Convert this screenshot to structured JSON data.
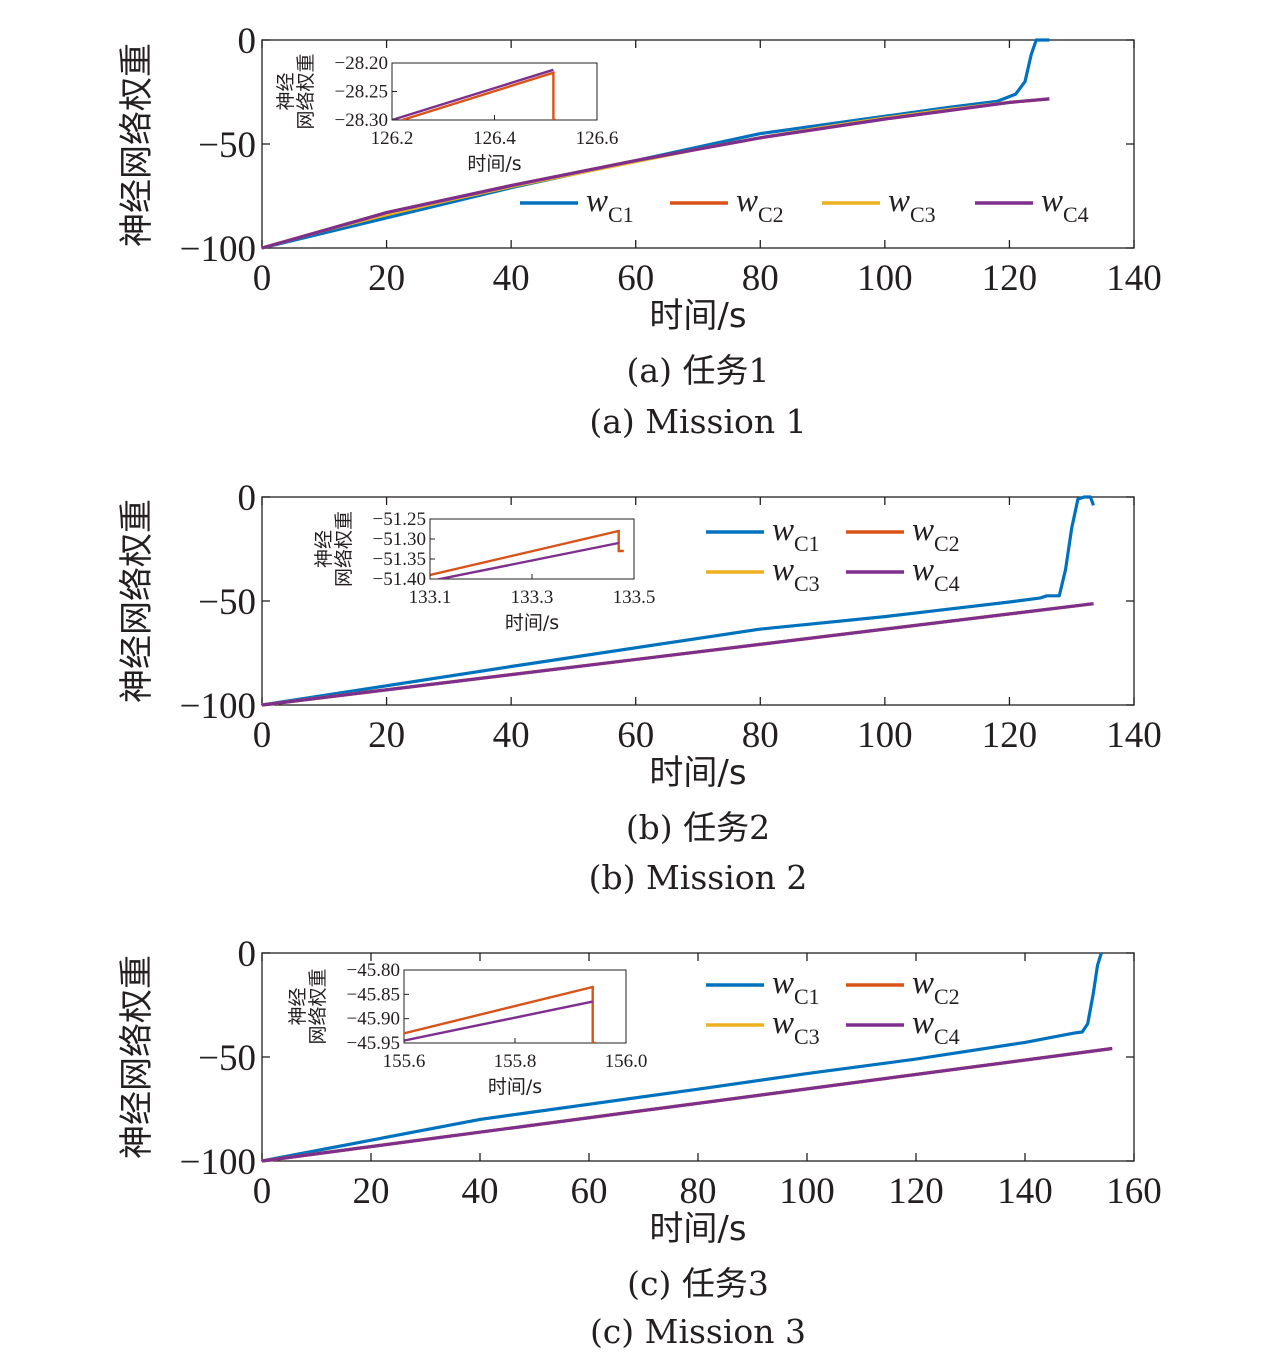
{
  "colors": {
    "wC1": "#0072bd",
    "wC2": "#d95319",
    "wC3": "#edb120",
    "wC4": "#7e2f8e",
    "axis": "#231f20"
  },
  "chart_data": [
    {
      "type": "line",
      "xlabel": "时间/s",
      "ylabel": "神经网络权重",
      "xlim": [
        0,
        140
      ],
      "ylim": [
        -100,
        0
      ],
      "xticks": [
        "0",
        "20",
        "40",
        "60",
        "80",
        "100",
        "120",
        "140"
      ],
      "yticks": [
        "0",
        "−50",
        "−100"
      ],
      "caption_cn": "(a) 任务1",
      "caption_en": "(a) Mission 1",
      "legend": {
        "placement": "lower-right",
        "layout": "1-row"
      },
      "series": [
        {
          "name": "wC1",
          "label_main": "w",
          "label_sub": "C1",
          "color": "#0072bd",
          "x": [
            0,
            40,
            80,
            110,
            118,
            121,
            122.5,
            123.5,
            124.3,
            126.4
          ],
          "y": [
            -100,
            -71,
            -45,
            -32.5,
            -29.5,
            -26,
            -20,
            -7,
            0,
            0
          ]
        },
        {
          "name": "wC2",
          "label_main": "w",
          "label_sub": "C2",
          "color": "#d95319",
          "x": [
            0,
            20,
            40,
            60,
            80,
            100,
            120,
            126.4
          ],
          "y": [
            -100,
            -83,
            -70,
            -58,
            -47,
            -38,
            -30,
            -28.3
          ]
        },
        {
          "name": "wC3",
          "label_main": "w",
          "label_sub": "C3",
          "color": "#edb120",
          "x": [
            0,
            10,
            20,
            30,
            40,
            50,
            60,
            70,
            80,
            90,
            100,
            110,
            120,
            126.4
          ],
          "y": [
            -100,
            -91.5,
            -84,
            -77,
            -70.5,
            -64.5,
            -58.5,
            -52.5,
            -47,
            -42,
            -37.5,
            -33.5,
            -30,
            -28.3
          ]
        },
        {
          "name": "wC4",
          "label_main": "w",
          "label_sub": "C4",
          "color": "#7e2f8e",
          "x": [
            0,
            20,
            40,
            60,
            80,
            100,
            120,
            126.4
          ],
          "y": [
            -100,
            -83,
            -70,
            -58,
            -47,
            -38,
            -30,
            -28.3
          ]
        }
      ],
      "inset": {
        "xlabel": "时间/s",
        "ylabel_line1": "神经",
        "ylabel_line2": "网络权重",
        "xlim": [
          126.2,
          126.6
        ],
        "ylim": [
          -28.3,
          -28.2
        ],
        "xticks": [
          "126.2",
          "126.4",
          "126.6"
        ],
        "yticks": [
          "−28.20",
          "−28.25",
          "−28.30"
        ],
        "series": [
          {
            "name": "wC2",
            "x": [
              126.22,
              126.515,
              126.515,
              126.52
            ],
            "y": [
              -28.3,
              -28.217,
              -28.3,
              -28.3
            ]
          },
          {
            "name": "wC4",
            "x": [
              126.2,
              126.515
            ],
            "y": [
              -28.3,
              -28.212
            ]
          }
        ]
      }
    },
    {
      "type": "line",
      "xlabel": "时间/s",
      "ylabel": "神经网络权重",
      "xlim": [
        0,
        140
      ],
      "ylim": [
        -100,
        0
      ],
      "xticks": [
        "0",
        "20",
        "40",
        "60",
        "80",
        "100",
        "120",
        "140"
      ],
      "yticks": [
        "0",
        "−50",
        "−100"
      ],
      "caption_cn": "(b) 任务2",
      "caption_en": "(b) Mission 2",
      "legend": {
        "placement": "top-right",
        "layout": "2-column"
      },
      "series": [
        {
          "name": "wC1",
          "label_main": "w",
          "label_sub": "C1",
          "color": "#0072bd",
          "x": [
            0,
            40,
            80,
            100,
            110,
            120,
            125,
            126,
            128,
            129,
            130,
            131,
            132,
            133,
            133.5
          ],
          "y": [
            -100,
            -81.5,
            -63.5,
            -57.5,
            -54,
            -50.5,
            -48.5,
            -47.5,
            -47.5,
            -35,
            -15,
            -1,
            0,
            0,
            -4
          ]
        },
        {
          "name": "wC2",
          "label_main": "w",
          "label_sub": "C2",
          "color": "#d95319",
          "x": [
            0,
            133.5
          ],
          "y": [
            -100,
            -51.3
          ]
        },
        {
          "name": "wC3",
          "label_main": "w",
          "label_sub": "C3",
          "color": "#edb120",
          "x": [
            0,
            133.5
          ],
          "y": [
            -100,
            -51.3
          ]
        },
        {
          "name": "wC4",
          "label_main": "w",
          "label_sub": "C4",
          "color": "#7e2f8e",
          "x": [
            0,
            133.5
          ],
          "y": [
            -100,
            -51.3
          ]
        }
      ],
      "inset": {
        "xlabel": "时间/s",
        "ylabel_line1": "神经",
        "ylabel_line2": "网络权重",
        "xlim": [
          133.1,
          133.5
        ],
        "ylim": [
          -51.4,
          -51.25
        ],
        "xticks": [
          "133.1",
          "133.3",
          "133.5"
        ],
        "yticks": [
          "−51.25",
          "−51.30",
          "−51.35",
          "−51.40"
        ],
        "series": [
          {
            "name": "wC2",
            "x": [
              133.1,
              133.47,
              133.47,
              133.48
            ],
            "y": [
              -51.39,
              -51.28,
              -51.33,
              -51.33
            ]
          },
          {
            "name": "wC4",
            "x": [
              133.1,
              133.47
            ],
            "y": [
              -51.405,
              -51.31
            ]
          }
        ]
      }
    },
    {
      "type": "line",
      "xlabel": "时间/s",
      "ylabel": "神经网络权重",
      "xlim": [
        0,
        160
      ],
      "ylim": [
        -100,
        0
      ],
      "xticks": [
        "0",
        "20",
        "40",
        "60",
        "80",
        "100",
        "120",
        "140",
        "160"
      ],
      "yticks": [
        "0",
        "−50",
        "−100"
      ],
      "caption_cn": "(c) 任务3",
      "caption_en": "(c) Mission 3",
      "legend": {
        "placement": "top-right",
        "layout": "2-column"
      },
      "series": [
        {
          "name": "wC1",
          "label_main": "w",
          "label_sub": "C1",
          "color": "#0072bd",
          "x": [
            0,
            40,
            80,
            100,
            120,
            140,
            146,
            149,
            150.5,
            151.5,
            152.5,
            153.3,
            154
          ],
          "y": [
            -100,
            -80,
            -65.5,
            -58,
            -51,
            -43,
            -40,
            -38.5,
            -38,
            -34,
            -20,
            -6,
            0
          ]
        },
        {
          "name": "wC2",
          "label_main": "w",
          "label_sub": "C2",
          "color": "#d95319",
          "x": [
            0,
            156
          ],
          "y": [
            -100,
            -45.9
          ]
        },
        {
          "name": "wC3",
          "label_main": "w",
          "label_sub": "C3",
          "color": "#edb120",
          "x": [
            0,
            156
          ],
          "y": [
            -100,
            -45.9
          ]
        },
        {
          "name": "wC4",
          "label_main": "w",
          "label_sub": "C4",
          "color": "#7e2f8e",
          "x": [
            0,
            156
          ],
          "y": [
            -100,
            -45.9
          ]
        }
      ],
      "inset": {
        "xlabel": "时间/s",
        "ylabel_line1": "神经",
        "ylabel_line2": "网络权重",
        "xlim": [
          155.6,
          156.0
        ],
        "ylim": [
          -45.95,
          -45.8
        ],
        "xticks": [
          "155.6",
          "155.8",
          "156.0"
        ],
        "yticks": [
          "−45.80",
          "−45.85",
          "−45.90",
          "−45.95"
        ],
        "series": [
          {
            "name": "wC2",
            "x": [
              155.6,
              155.94,
              155.94,
              155.945
            ],
            "y": [
              -45.93,
              -45.835,
              -45.95,
              -45.95
            ]
          },
          {
            "name": "wC4",
            "x": [
              155.6,
              155.94
            ],
            "y": [
              -45.945,
              -45.865
            ]
          }
        ]
      }
    }
  ]
}
